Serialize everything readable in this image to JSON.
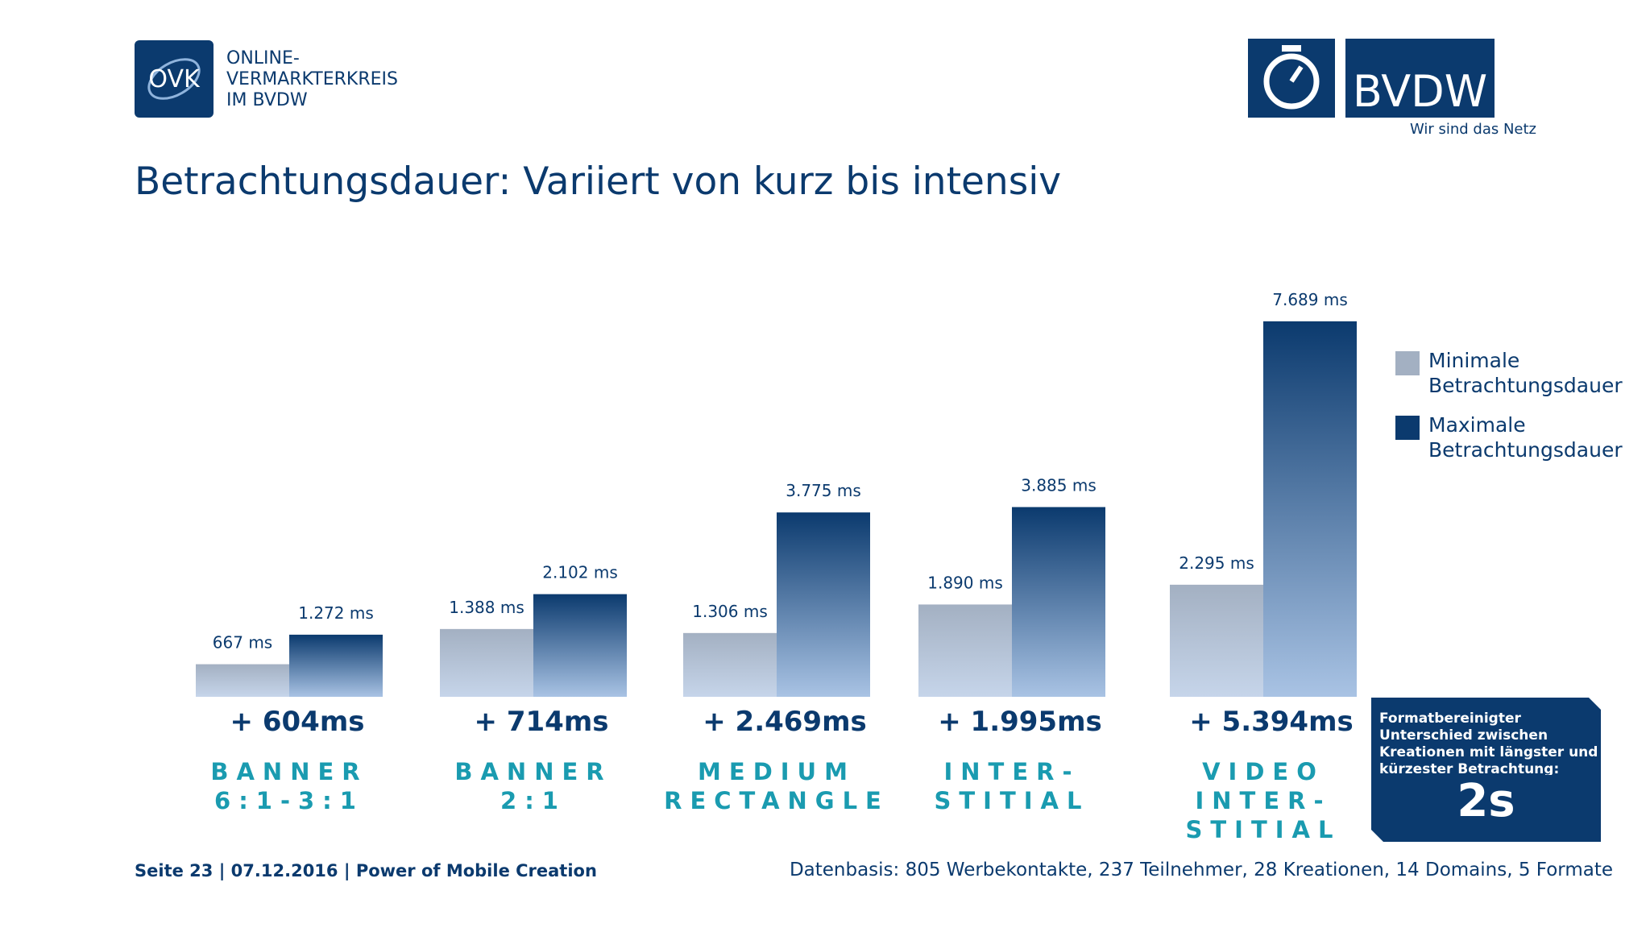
{
  "chart_data": {
    "type": "bar",
    "title": "Betrachtungsdauer: Variiert von kurz bis intensiv",
    "categories": [
      "BANNER\n6:1-3:1",
      "BANNER\n2:1",
      "MEDIUM\nRECTANGLE",
      "INTER-\nSTITIAL",
      "VIDEO\nINTER-\nSTITIAL"
    ],
    "series": [
      {
        "name": "Minimale\nBetrachtungsdauer",
        "color": "#a3b0c2",
        "values": [
          667,
          1388,
          1306,
          1890,
          2295
        ],
        "value_labels": [
          "667 ms",
          "1.388 ms",
          "1.306 ms",
          "1.890 ms",
          "2.295 ms"
        ]
      },
      {
        "name": "Maximale\nBetrachtungsdauer",
        "color": "#0b3a6e",
        "values": [
          1272,
          2102,
          3775,
          3885,
          7689
        ],
        "value_labels": [
          "1.272 ms",
          "2.102 ms",
          "3.775 ms",
          "3.885 ms",
          "7.689 ms"
        ]
      }
    ],
    "differences": [
      "+ 604ms",
      "+ 714ms",
      "+ 2.469ms",
      "+ 1.995ms",
      "+ 5.394ms"
    ],
    "ylim": [
      0,
      8000
    ],
    "note_box": {
      "text": "Formatbereinigter Unterschied zwischen Kreationen mit längster und kürzester Betrachtung:",
      "value": "2s"
    }
  },
  "header": {
    "ovk_logo": "OVK",
    "ovk_name": "ONLINE-\nVERMARKTERKREIS\nIM BVDW",
    "bvdw_logo": "BVDW",
    "bvdw_slogan": "Wir sind das Netz"
  },
  "footer": {
    "left": "Seite 23 | 07.12.2016 | Power of Mobile Creation",
    "right": "Datenbasis: 805 Werbekontakte, 237 Teilnehmer, 28 Kreationen, 14 Domains, 5 Formate"
  }
}
